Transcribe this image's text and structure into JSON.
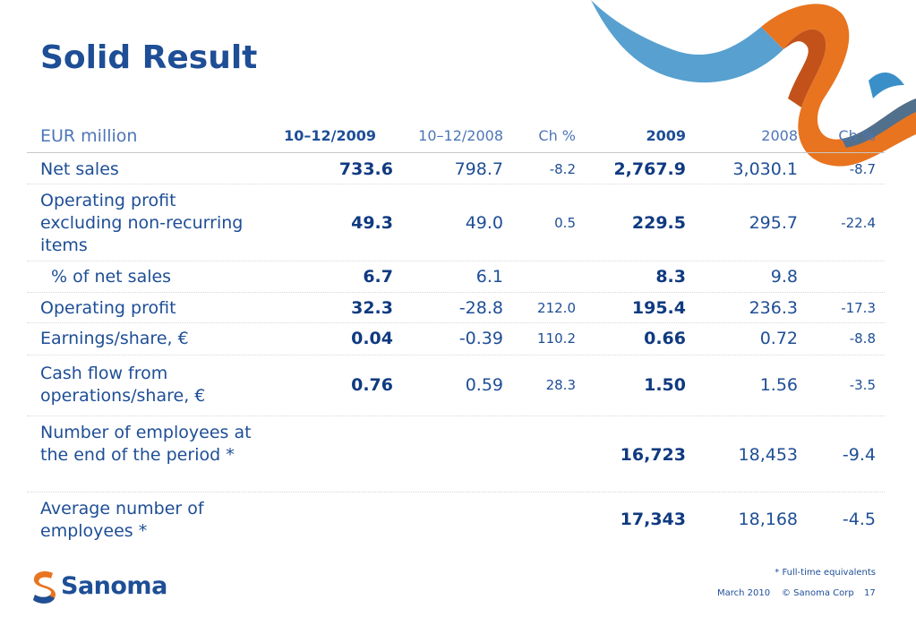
{
  "slide": {
    "title": "Solid Result",
    "footnote": "* Full-time equivalents",
    "footer": {
      "date": "March 2010",
      "copyright": "© Sanoma Corp",
      "page": "17"
    },
    "logo_text": "Sanoma",
    "colors": {
      "brand_blue": "#1e4e96",
      "header_blue": "#4d76b8",
      "ribbon_orange": "#e8741f",
      "ribbon_blue": "#3a8fc8"
    }
  },
  "table": {
    "headers": {
      "label": "EUR million",
      "q4_2009": "10–12/2009",
      "q4_2008": "10–12/2008",
      "ch_q": "Ch %",
      "y2009": "2009",
      "y2008": "2008",
      "ch_y": "Ch %"
    },
    "rows": [
      {
        "label": "Net sales",
        "q4_2009": "733.6",
        "q4_2008": "798.7",
        "ch_q": "-8.2",
        "y2009": "2,767.9",
        "y2008": "3,030.1",
        "ch_y": "-8.7"
      },
      {
        "label": "Operating profit excluding non-recurring items",
        "q4_2009": "49.3",
        "q4_2008": "49.0",
        "ch_q": "0.5",
        "y2009": "229.5",
        "y2008": "295.7",
        "ch_y": "-22.4"
      },
      {
        "label": "% of net sales",
        "q4_2009": "6.7",
        "q4_2008": "6.1",
        "ch_q": "",
        "y2009": "8.3",
        "y2008": "9.8",
        "ch_y": ""
      },
      {
        "label": "Operating profit",
        "q4_2009": "32.3",
        "q4_2008": "-28.8",
        "ch_q": "212.0",
        "y2009": "195.4",
        "y2008": "236.3",
        "ch_y": "-17.3"
      },
      {
        "label": "Earnings/share, €",
        "q4_2009": "0.04",
        "q4_2008": "-0.39",
        "ch_q": "110.2",
        "y2009": "0.66",
        "y2008": "0.72",
        "ch_y": "-8.8"
      },
      {
        "label": "Cash flow from operations/share, €",
        "q4_2009": "0.76",
        "q4_2008": "0.59",
        "ch_q": "28.3",
        "y2009": "1.50",
        "y2008": "1.56",
        "ch_y": "-3.5"
      },
      {
        "label": "Number of employees at the end of the period *",
        "q4_2009": "",
        "q4_2008": "",
        "ch_q": "",
        "y2009": "16,723",
        "y2008": "18,453",
        "ch_y": "-9.4"
      },
      {
        "label": "Average number of employees *",
        "q4_2009": "",
        "q4_2008": "",
        "ch_q": "",
        "y2009": "17,343",
        "y2008": "18,168",
        "ch_y": "-4.5"
      }
    ]
  }
}
